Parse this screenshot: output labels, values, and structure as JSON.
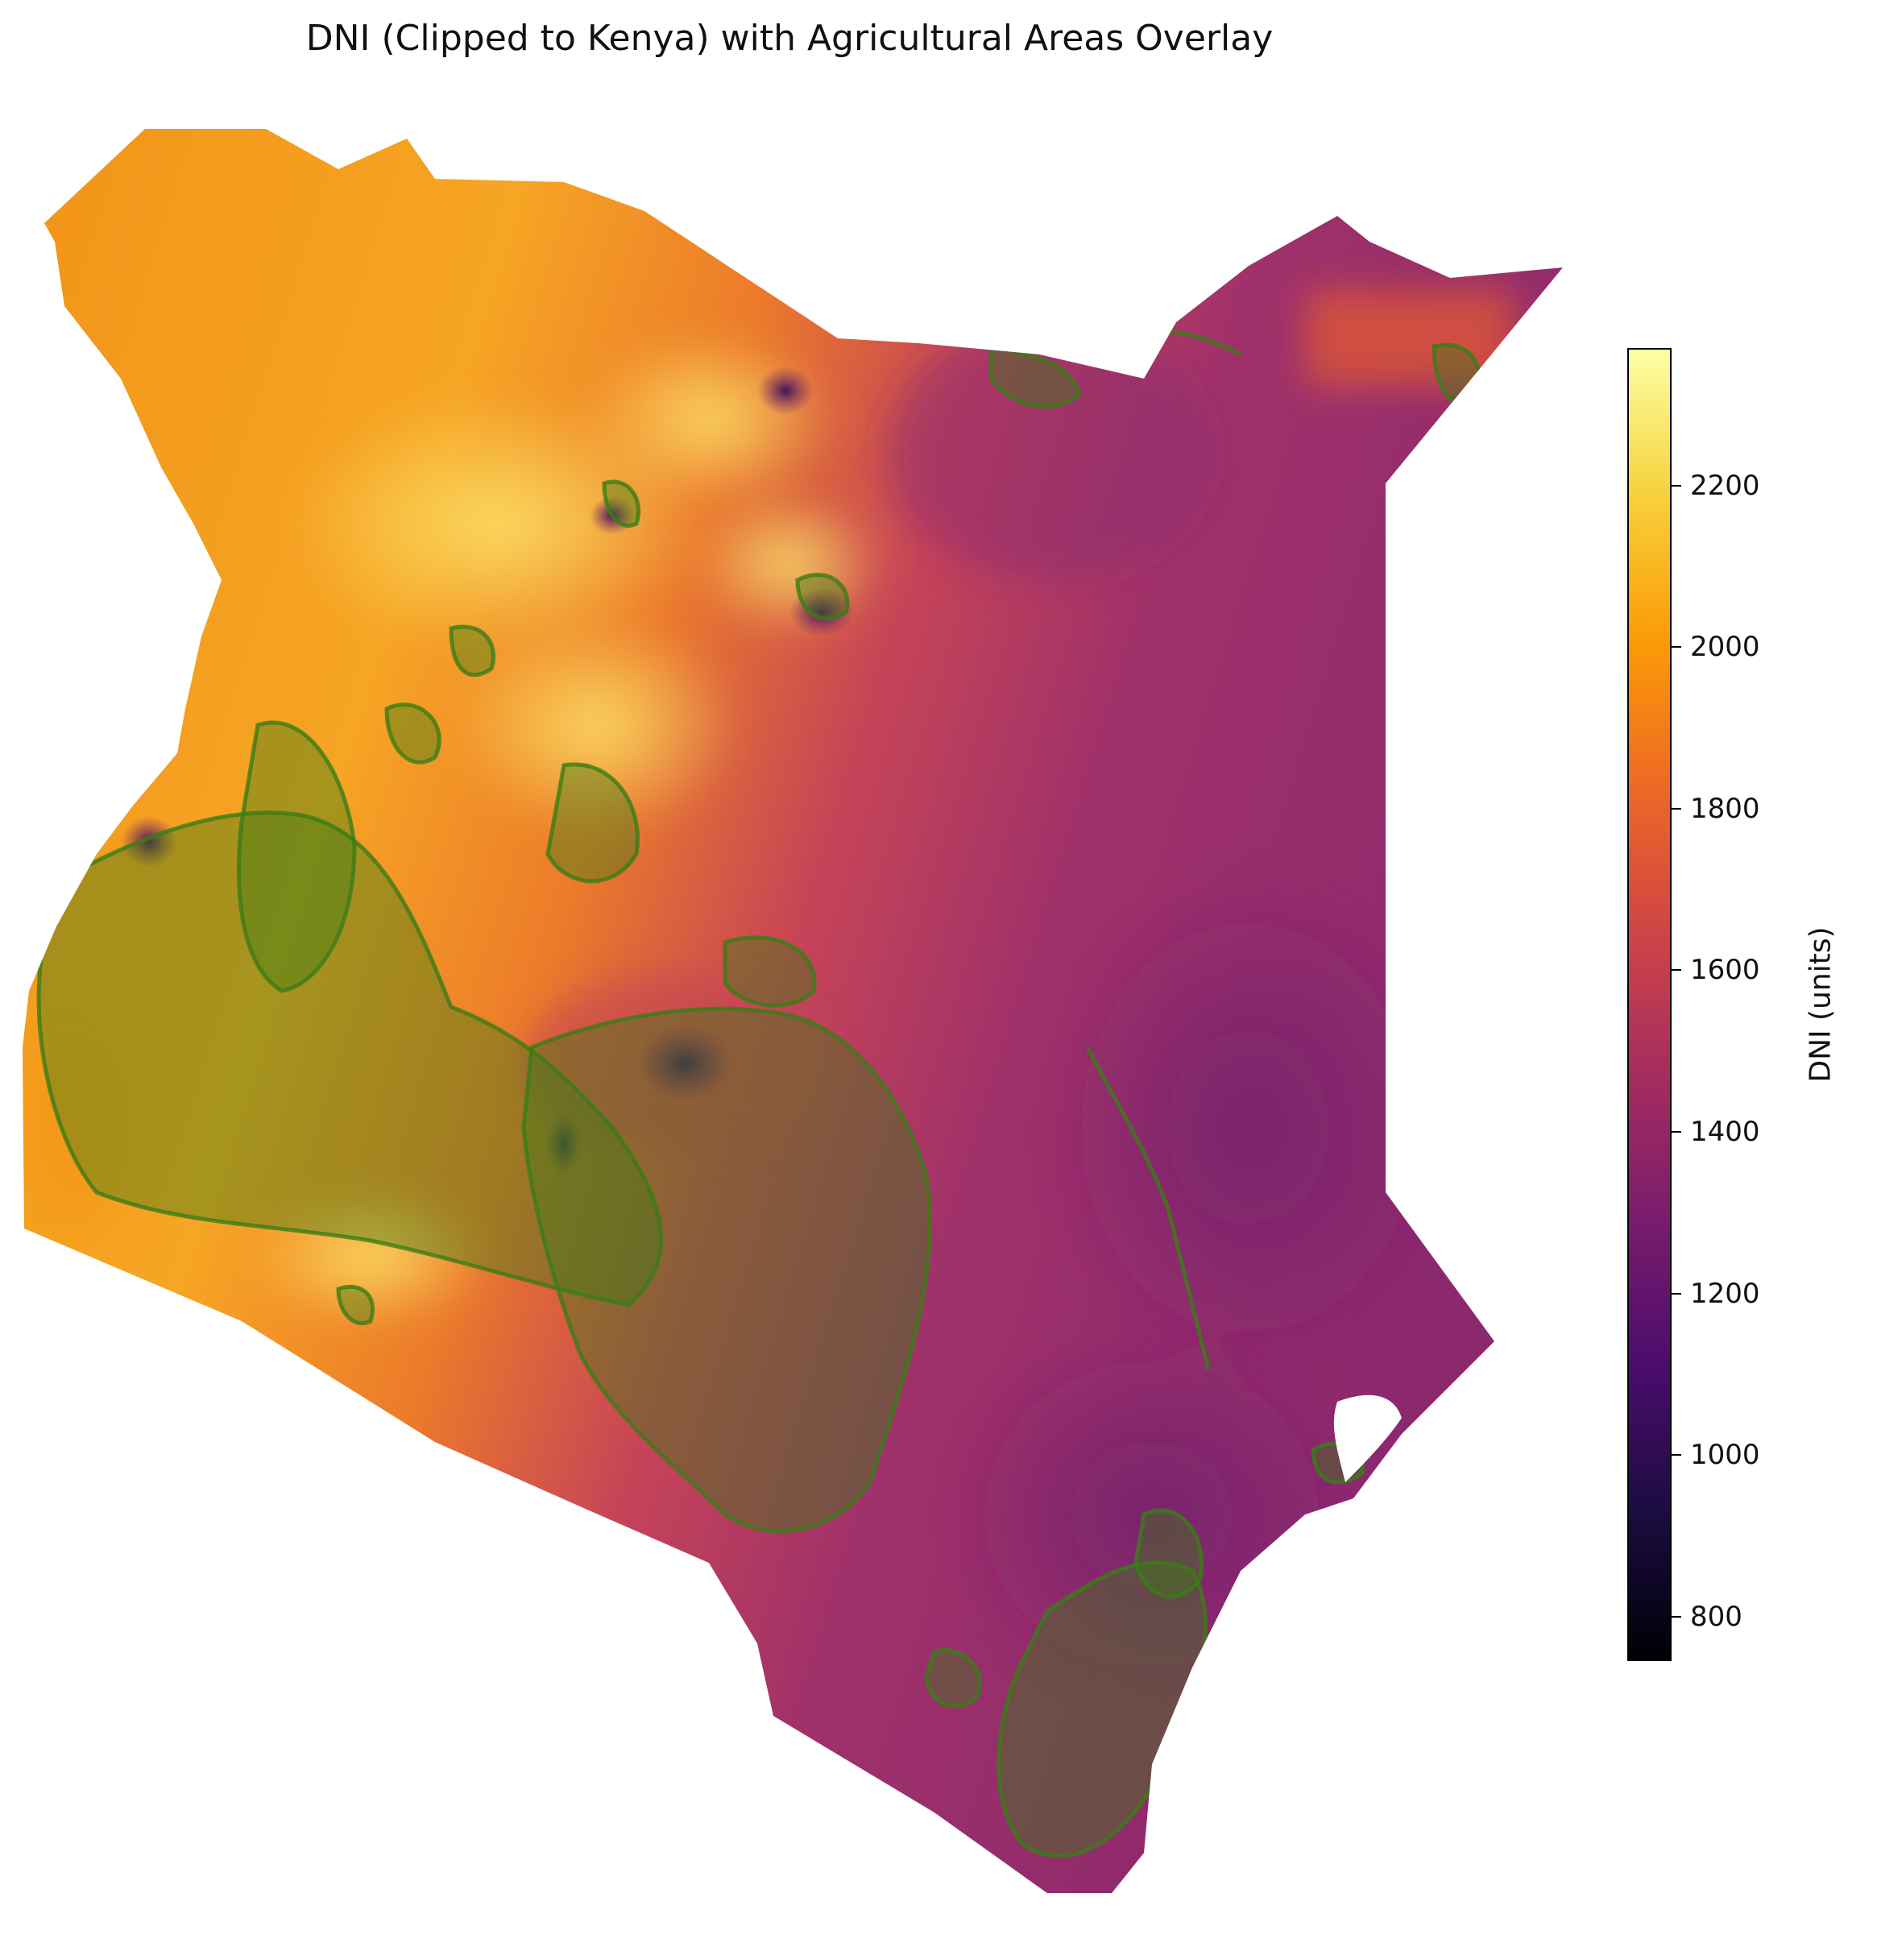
{
  "title": "DNI (Clipped to Kenya) with Agricultural Areas Overlay",
  "colorbar": {
    "label": "DNI (units)",
    "colormap": "inferno",
    "range": [
      745,
      2370
    ],
    "ticks": [
      800,
      1000,
      1200,
      1400,
      1600,
      1800,
      2000,
      2200
    ],
    "colors": [
      "#000004",
      "#1b0c41",
      "#4a0c6b",
      "#781c6d",
      "#a52c60",
      "#cf4446",
      "#ed6925",
      "#fb9b06",
      "#f7d13d",
      "#fcffa4"
    ]
  },
  "overlay": {
    "name": "Agricultural Areas",
    "color": "#3a7d16"
  },
  "map_colors": {
    "north_west": "#f5a21a",
    "east": "#9c2f66",
    "south_east": "#8c2a6e",
    "highlight": "#f7d13d"
  }
}
